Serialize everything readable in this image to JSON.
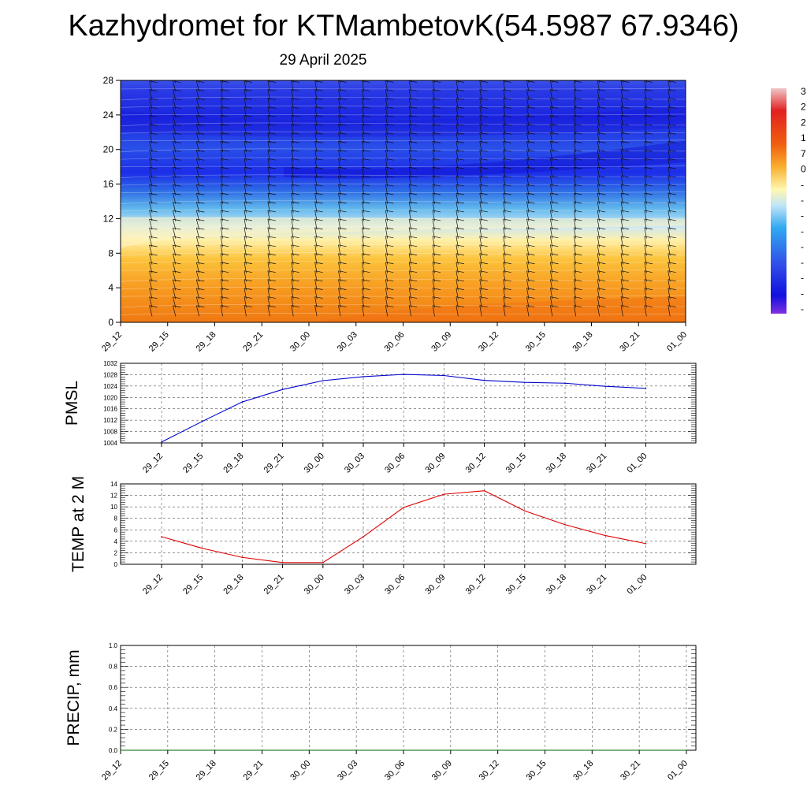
{
  "title": "Kazhydromet for KTMambetovK(54.5987 67.9346)",
  "subtitle": "29 April 2025",
  "colors": {
    "pmsl_line": "#0000cc",
    "temp_line": "#dd0000",
    "precip_line": "#006600"
  },
  "chart_data": [
    {
      "type": "heatmap",
      "title": "",
      "x_ticks": [
        "29_12",
        "29_15",
        "29_18",
        "29_21",
        "30_00",
        "30_03",
        "30_06",
        "30_09",
        "30_12",
        "30_15",
        "30_18",
        "30_21",
        "01_00"
      ],
      "y_ticks": [
        0,
        4,
        8,
        12,
        16,
        20,
        24,
        28
      ],
      "ylim": [
        0,
        28
      ],
      "colorbar_ticks": [
        "3",
        "2",
        "2",
        "1",
        "7",
        "0",
        "-",
        "-",
        "-",
        "-",
        "-",
        "-",
        "-",
        "-",
        "-"
      ],
      "colorbar_range": "warm red at top to purple-blue at bottom",
      "wind_barbs": true
    },
    {
      "type": "line",
      "ylabel": "PMSL",
      "x_ticks": [
        "29_12",
        "29_15",
        "29_18",
        "29_21",
        "30_00",
        "30_03",
        "30_06",
        "30_09",
        "30_12",
        "30_15",
        "30_18",
        "30_21",
        "01_00"
      ],
      "y_ticks": [
        1004,
        1008,
        1012,
        1016,
        1020,
        1024,
        1028,
        1032
      ],
      "ylim": [
        1004,
        1032
      ],
      "values": [
        1004.3,
        1011.5,
        1018.4,
        1022.8,
        1025.9,
        1027.3,
        1028.1,
        1027.7,
        1026.0,
        1025.3,
        1025.0,
        1023.9,
        1023.2
      ],
      "grid": true
    },
    {
      "type": "line",
      "ylabel": "TEMP at 2 M",
      "x_ticks": [
        "29_12",
        "29_15",
        "29_18",
        "29_21",
        "30_00",
        "30_03",
        "30_06",
        "30_09",
        "30_12",
        "30_15",
        "30_18",
        "30_21",
        "01_00"
      ],
      "y_ticks": [
        0,
        2,
        4,
        6,
        8,
        10,
        12,
        14
      ],
      "ylim": [
        0,
        14
      ],
      "values": [
        4.8,
        2.8,
        1.2,
        0.3,
        0.3,
        4.8,
        9.9,
        12.2,
        12.8,
        9.3,
        6.9,
        5.0,
        3.6
      ],
      "grid": true
    },
    {
      "type": "line",
      "ylabel": "PRECIP, mm",
      "x_ticks": [
        "29_12",
        "29_15",
        "29_18",
        "29_21",
        "30_00",
        "30_03",
        "30_06",
        "30_09",
        "30_12",
        "30_15",
        "30_18",
        "30_21",
        "01_00"
      ],
      "y_ticks": [
        "0.0",
        "0.2",
        "0.4",
        "0.6",
        "0.8",
        "1.0"
      ],
      "ylim": [
        0,
        1
      ],
      "values": [
        0,
        0,
        0,
        0,
        0,
        0,
        0,
        0,
        0,
        0,
        0,
        0,
        0
      ],
      "grid": true
    }
  ]
}
